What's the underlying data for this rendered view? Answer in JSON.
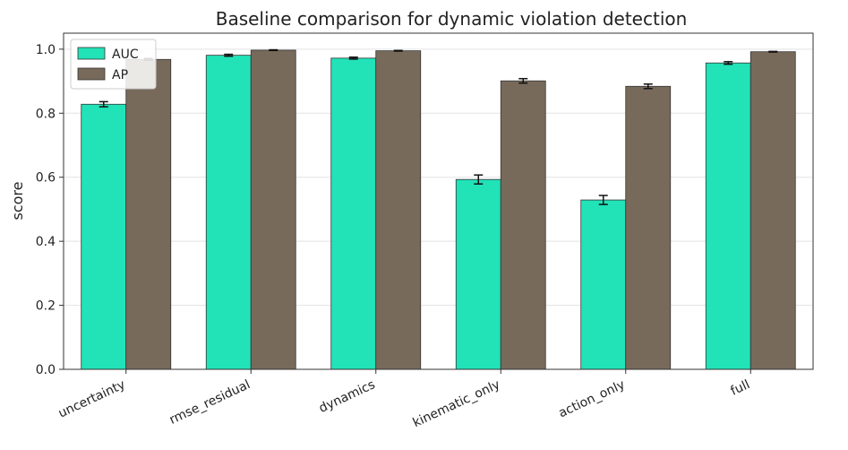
{
  "chart_data": {
    "type": "bar",
    "title": "Baseline comparison for dynamic violation detection",
    "xlabel": "",
    "ylabel": "score",
    "ylim": [
      0,
      1.05
    ],
    "yticks": [
      "0.0",
      "0.2",
      "0.4",
      "0.6",
      "0.8",
      "1.0"
    ],
    "categories": [
      "uncertainty",
      "rmse_residual",
      "dynamics",
      "kinematic_only",
      "action_only",
      "full"
    ],
    "series": [
      {
        "name": "AUC",
        "color": "#22e2b8",
        "values": [
          0.828,
          0.981,
          0.972,
          0.593,
          0.529,
          0.957
        ],
        "errors": [
          0.008,
          0.003,
          0.003,
          0.014,
          0.014,
          0.004
        ]
      },
      {
        "name": "AP",
        "color": "#786a5b",
        "values": [
          0.968,
          0.997,
          0.995,
          0.901,
          0.884,
          0.992
        ],
        "errors": [
          0.003,
          0.001,
          0.001,
          0.007,
          0.007,
          0.001
        ]
      }
    ],
    "grid": "y",
    "legend_position": "top-left"
  }
}
